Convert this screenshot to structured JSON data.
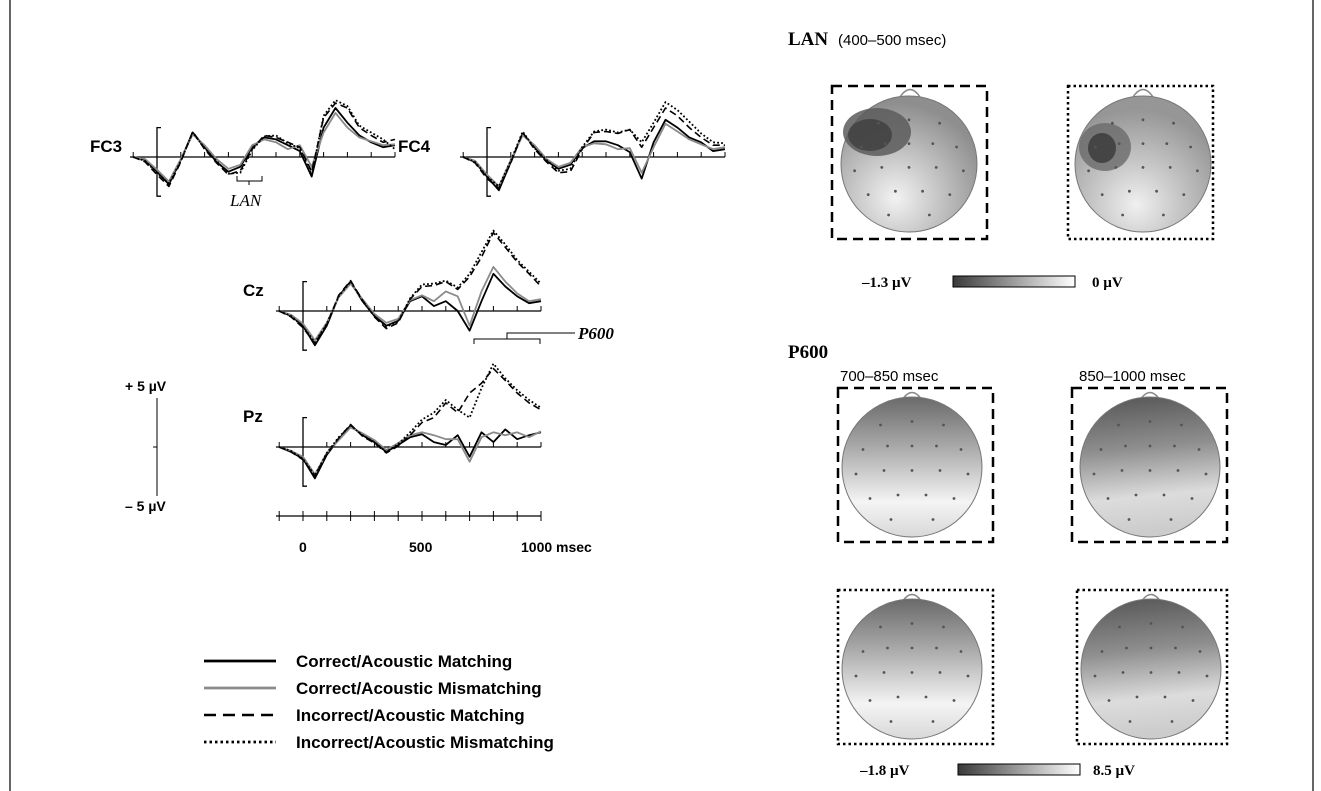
{
  "chart_data": [
    {
      "type": "line",
      "x_unit": "msec",
      "x_ticks": [
        "0",
        "500",
        "1000 msec"
      ],
      "x_range": [
        -100,
        1000
      ],
      "scale_bar": {
        "top": "+ 5 µV",
        "bottom": "– 5 µV"
      },
      "components": [
        {
          "label": "LAN",
          "channel": "FC3"
        },
        {
          "label": "P600",
          "channel": "Cz"
        }
      ],
      "channels": [
        {
          "name": "FC3",
          "x": [
            -100,
            -50,
            0,
            50,
            100,
            150,
            200,
            250,
            300,
            350,
            400,
            450,
            500,
            550,
            600,
            650,
            700,
            750,
            800,
            850,
            900,
            950,
            1000
          ],
          "series": [
            {
              "condition": "Correct/Acoustic Matching",
              "values": [
                0,
                -0.3,
                -1.5,
                -2.8,
                -0.3,
                2.5,
                1,
                -0.5,
                -1.5,
                -1,
                1,
                2,
                1.8,
                1.2,
                0.6,
                -2,
                3,
                5,
                3.5,
                2.2,
                1.5,
                1,
                1.2
              ]
            },
            {
              "condition": "Correct/Acoustic Mismatching",
              "values": [
                0,
                -0.2,
                -1.3,
                -2.5,
                -0.2,
                2.3,
                1.2,
                -0.2,
                -1.2,
                -0.8,
                1.2,
                1.8,
                1.5,
                0.8,
                1.2,
                -1,
                2.5,
                4.5,
                3,
                2,
                1.6,
                1.2,
                1.3
              ]
            },
            {
              "condition": "Incorrect/Acoustic Matching",
              "values": [
                0,
                -0.5,
                -1.8,
                -3,
                -0.5,
                2.6,
                0.8,
                -0.6,
                -1.8,
                -1.4,
                0.8,
                2.2,
                2,
                1.5,
                1,
                -1.5,
                4,
                5.5,
                5,
                3,
                2.2,
                1.5,
                1.8
              ]
            },
            {
              "condition": "Incorrect/Acoustic Mismatching",
              "values": [
                0,
                -0.4,
                -1.6,
                -2.7,
                -0.4,
                2.5,
                0.9,
                -0.4,
                -1.7,
                -1.6,
                0.7,
                2.1,
                2.2,
                1.4,
                0.9,
                -1.8,
                4.2,
                5.8,
                5.2,
                3.2,
                2.5,
                1.8,
                0.8
              ]
            }
          ]
        },
        {
          "name": "FC4",
          "x": [
            -100,
            -50,
            0,
            50,
            100,
            150,
            200,
            250,
            300,
            350,
            400,
            450,
            500,
            550,
            600,
            650,
            700,
            750,
            800,
            850,
            900,
            950,
            1000
          ],
          "series": [
            {
              "condition": "Correct/Acoustic Matching",
              "values": [
                0,
                -0.5,
                -2,
                -3.4,
                -0.5,
                2.4,
                1,
                -0.4,
                -1.2,
                -0.8,
                0.9,
                1.6,
                1.6,
                1.2,
                0.5,
                -2.2,
                1.5,
                3.8,
                3,
                2,
                1.5,
                0.6,
                0.8
              ]
            },
            {
              "condition": "Correct/Acoustic Mismatching",
              "values": [
                0,
                -0.4,
                -1.8,
                -3,
                -0.3,
                2.2,
                1.2,
                -0.2,
                -1,
                -0.6,
                1,
                1.4,
                1.3,
                0.8,
                0.9,
                -1.6,
                1,
                3.4,
                2.6,
                1.8,
                1.3,
                0.8,
                1
              ]
            },
            {
              "condition": "Incorrect/Acoustic Matching",
              "values": [
                0,
                -0.6,
                -2.2,
                -3.2,
                -0.6,
                2.5,
                0.8,
                -0.5,
                -1.6,
                -1.5,
                0.8,
                2.5,
                2.6,
                2.4,
                2.8,
                1,
                3,
                5,
                4.2,
                3,
                2,
                1.2,
                1.2
              ]
            },
            {
              "condition": "Incorrect/Acoustic Mismatching",
              "values": [
                0,
                -0.5,
                -2,
                -3,
                -0.4,
                2.6,
                0.9,
                -0.3,
                -1.4,
                -1.2,
                1,
                2.6,
                2.8,
                2.5,
                2.8,
                1.5,
                3.5,
                5.6,
                4.8,
                3.6,
                2.4,
                1.5,
                1.4
              ]
            }
          ]
        },
        {
          "name": "Cz",
          "x": [
            -100,
            -50,
            0,
            50,
            100,
            150,
            200,
            250,
            300,
            350,
            400,
            450,
            500,
            550,
            600,
            650,
            700,
            750,
            800,
            850,
            900,
            950,
            1000
          ],
          "series": [
            {
              "condition": "Correct/Acoustic Matching",
              "values": [
                0,
                -0.5,
                -1.5,
                -3.5,
                -1.5,
                1.5,
                3,
                1,
                -0.5,
                -1.5,
                -1,
                1,
                1.5,
                0.5,
                1,
                0,
                -2,
                1,
                3.8,
                2.5,
                1.5,
                0.8,
                1
              ]
            },
            {
              "condition": "Correct/Acoustic Mismatching",
              "values": [
                0,
                -0.4,
                -1.3,
                -3,
                -1.2,
                1.4,
                2.8,
                1.2,
                -0.3,
                -1.2,
                -0.8,
                1.1,
                1.6,
                1,
                2,
                1.5,
                -1.5,
                2,
                4.5,
                3,
                1.8,
                1,
                1.2
              ]
            },
            {
              "condition": "Incorrect/Acoustic Matching",
              "values": [
                0,
                -0.6,
                -1.7,
                -3.3,
                -1.4,
                1.6,
                3.1,
                1.1,
                -0.6,
                -1.8,
                -1.2,
                1.2,
                2.5,
                2.6,
                3,
                2.2,
                3.5,
                5.5,
                8,
                6.5,
                5,
                3.8,
                2.5
              ]
            },
            {
              "condition": "Incorrect/Acoustic Mismatching",
              "values": [
                0,
                -0.5,
                -1.6,
                -3.2,
                -1.3,
                1.5,
                3,
                1,
                -0.5,
                -1.6,
                -1.1,
                1.3,
                2.7,
                2.8,
                3.1,
                2.4,
                3.8,
                6,
                8.2,
                6.8,
                5.2,
                4,
                2.8
              ]
            }
          ]
        },
        {
          "name": "Pz",
          "x": [
            -100,
            -50,
            0,
            50,
            100,
            150,
            200,
            250,
            300,
            350,
            400,
            450,
            500,
            550,
            600,
            650,
            700,
            750,
            800,
            850,
            900,
            950,
            1000
          ],
          "series": [
            {
              "condition": "Correct/Acoustic Matching",
              "values": [
                0,
                -0.5,
                -1.2,
                -3.2,
                -0.8,
                0.8,
                2.2,
                1.2,
                0.5,
                -0.5,
                0.2,
                1,
                1.3,
                0.5,
                0.2,
                1.2,
                -1,
                1.5,
                0.5,
                1.8,
                0.8,
                1.2,
                1.5
              ]
            },
            {
              "condition": "Correct/Acoustic Mismatching",
              "values": [
                0,
                -0.4,
                -1,
                -2.8,
                -0.6,
                0.7,
                2,
                1.4,
                0.7,
                -0.3,
                0.4,
                1.2,
                1.5,
                1.2,
                0.8,
                0.8,
                -1.5,
                1,
                1.5,
                1.2,
                1.5,
                1,
                1.6
              ]
            },
            {
              "condition": "Incorrect/Acoustic Matching",
              "values": [
                0,
                -0.5,
                -1.3,
                -3,
                -0.7,
                0.9,
                2.3,
                1.1,
                0.4,
                -0.6,
                0.1,
                1.2,
                2.5,
                3,
                4.5,
                3.5,
                5.5,
                6.5,
                8,
                6.8,
                5.5,
                4.5,
                3.8
              ]
            },
            {
              "condition": "Incorrect/Acoustic Mismatching",
              "values": [
                0,
                -0.4,
                -1.2,
                -2.9,
                -0.6,
                1,
                2.2,
                1.2,
                0.5,
                -0.5,
                0.3,
                1.5,
                2.8,
                3.5,
                4.8,
                3.8,
                3,
                6,
                8.5,
                7,
                5.8,
                4.8,
                4
              ]
            }
          ]
        }
      ],
      "legend": [
        {
          "label": "Correct/Acoustic Matching",
          "style": "solid",
          "color": "#000000"
        },
        {
          "label": "Correct/Acoustic Mismatching",
          "style": "solid",
          "color": "#8a8a8a"
        },
        {
          "label": "Incorrect/Acoustic Matching",
          "style": "dashed",
          "color": "#000000"
        },
        {
          "label": "Incorrect/Acoustic Mismatching",
          "style": "dotted",
          "color": "#000000"
        }
      ]
    },
    {
      "type": "heatmap",
      "subtype": "scalp-topography",
      "title": "LAN",
      "subtitle": "(400–500 msec)",
      "color_range": {
        "min": "–1.3 µV",
        "max": "0 µV",
        "min_color": "#3a3a3a",
        "max_color": "#ffffff"
      },
      "maps": [
        {
          "condition": "Incorrect/Acoustic Matching",
          "border": "dashed"
        },
        {
          "condition": "Incorrect/Acoustic Mismatching",
          "border": "dotted"
        }
      ]
    },
    {
      "type": "heatmap",
      "subtype": "scalp-topography",
      "title": "P600",
      "windows": [
        "700–850 msec",
        "850–1000 msec"
      ],
      "color_range": {
        "min": "–1.8 µV",
        "max": "8.5 µV",
        "min_color": "#3a3a3a",
        "max_color": "#ffffff"
      },
      "maps": [
        {
          "condition": "Incorrect/Acoustic Matching",
          "window": "700–850 msec",
          "border": "dashed"
        },
        {
          "condition": "Incorrect/Acoustic Matching",
          "window": "850–1000 msec",
          "border": "dashed"
        },
        {
          "condition": "Incorrect/Acoustic Mismatching",
          "window": "700–850 msec",
          "border": "dotted"
        },
        {
          "condition": "Incorrect/Acoustic Mismatching",
          "window": "850–1000 msec",
          "border": "dotted"
        }
      ]
    }
  ]
}
